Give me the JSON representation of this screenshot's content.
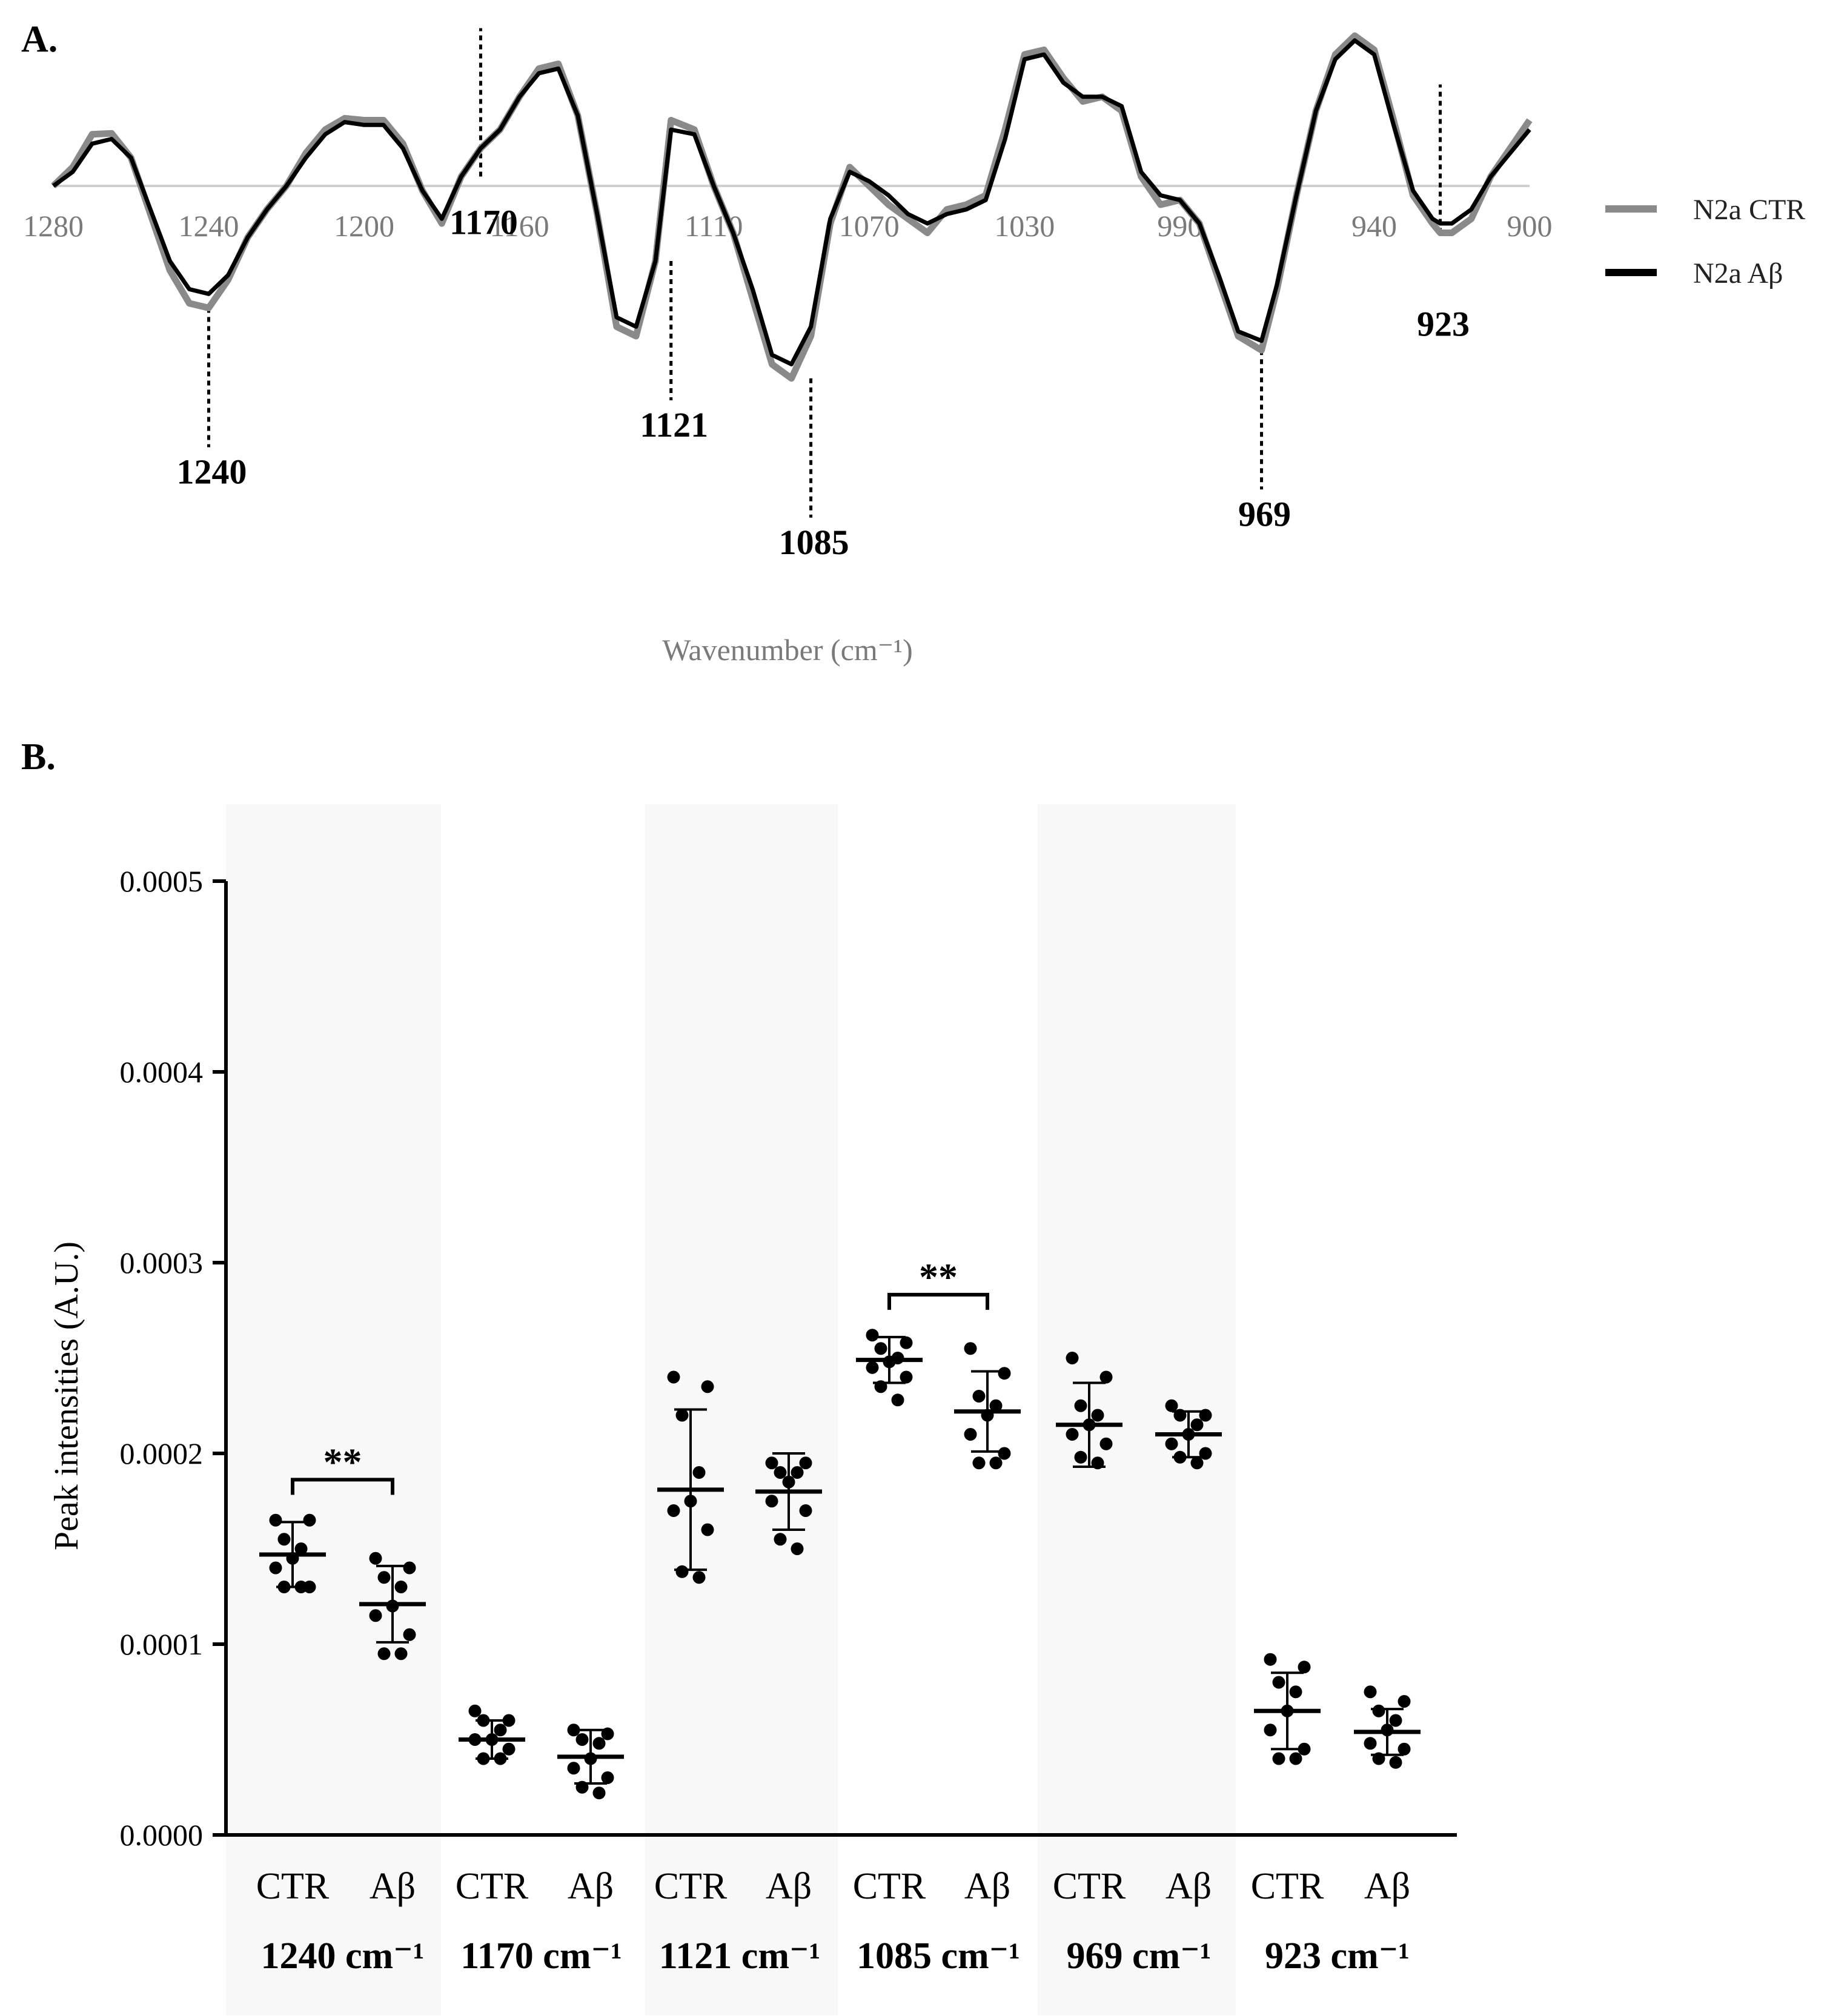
{
  "panel_a": {
    "label": "A.",
    "xlabel": "Wavenumber (cm⁻¹)",
    "legend": [
      {
        "name": "N2a CTR",
        "color": "#8a8a8a"
      },
      {
        "name": "N2a Aβ",
        "color": "#000000"
      }
    ],
    "x_ticks": [
      "1280",
      "1240",
      "1200",
      "1160",
      "1110",
      "1070",
      "1030",
      "990",
      "940",
      "900"
    ],
    "peaks": [
      "1240",
      "1170",
      "1121",
      "1085",
      "969",
      "923"
    ]
  },
  "panel_b": {
    "label": "B.",
    "ylabel": "Peak intensities (A.U.)",
    "y_ticks": [
      "0.0000",
      "0.0001",
      "0.0002",
      "0.0003",
      "0.0004",
      "0.0005"
    ],
    "significance": "**"
  },
  "chart_data": [
    {
      "type": "line",
      "xlabel": "Wavenumber (cm⁻¹)",
      "xlim": [
        1280,
        900
      ],
      "x_reversed": true,
      "y_axis_shown": false,
      "legend_position": "right",
      "x": [
        1280,
        1275,
        1270,
        1265,
        1260,
        1255,
        1250,
        1245,
        1240,
        1235,
        1230,
        1225,
        1220,
        1215,
        1210,
        1205,
        1200,
        1195,
        1190,
        1185,
        1180,
        1175,
        1170,
        1165,
        1160,
        1155,
        1150,
        1145,
        1140,
        1135,
        1130,
        1125,
        1121,
        1115,
        1110,
        1105,
        1100,
        1095,
        1090,
        1085,
        1080,
        1075,
        1070,
        1065,
        1060,
        1055,
        1050,
        1045,
        1040,
        1035,
        1030,
        1025,
        1020,
        1015,
        1010,
        1005,
        1000,
        995,
        990,
        985,
        980,
        975,
        969,
        965,
        960,
        955,
        950,
        945,
        940,
        935,
        930,
        925,
        923,
        920,
        915,
        910,
        905,
        900
      ],
      "series": [
        {
          "name": "N2a CTR",
          "color": "#8a8a8a",
          "values": [
            0.0,
            0.2,
            0.55,
            0.56,
            0.3,
            -0.3,
            -0.9,
            -1.25,
            -1.3,
            -1.0,
            -0.55,
            -0.25,
            0.0,
            0.35,
            0.6,
            0.72,
            0.7,
            0.7,
            0.45,
            -0.05,
            -0.4,
            0.1,
            0.4,
            0.6,
            0.95,
            1.25,
            1.3,
            0.75,
            -0.3,
            -1.5,
            -1.6,
            -0.8,
            0.7,
            0.6,
            0.0,
            -0.5,
            -1.2,
            -1.9,
            -2.05,
            -1.6,
            -0.4,
            0.2,
            0.0,
            -0.2,
            -0.35,
            -0.5,
            -0.25,
            -0.2,
            -0.1,
            0.6,
            1.4,
            1.45,
            1.15,
            0.9,
            0.95,
            0.8,
            0.1,
            -0.2,
            -0.15,
            -0.4,
            -1.0,
            -1.6,
            -1.75,
            -1.1,
            -0.1,
            0.8,
            1.4,
            1.6,
            1.45,
            0.7,
            -0.1,
            -0.4,
            -0.5,
            -0.5,
            -0.35,
            0.1,
            0.4,
            0.7
          ]
        },
        {
          "name": "N2a Aβ",
          "color": "#000000",
          "values": [
            0.0,
            0.15,
            0.45,
            0.5,
            0.3,
            -0.25,
            -0.8,
            -1.1,
            -1.15,
            -0.95,
            -0.55,
            -0.25,
            0.0,
            0.3,
            0.55,
            0.68,
            0.65,
            0.65,
            0.4,
            -0.05,
            -0.35,
            0.1,
            0.4,
            0.6,
            0.95,
            1.2,
            1.25,
            0.75,
            -0.3,
            -1.4,
            -1.5,
            -0.8,
            0.6,
            0.55,
            0.0,
            -0.5,
            -1.1,
            -1.8,
            -1.9,
            -1.5,
            -0.35,
            0.15,
            0.05,
            -0.1,
            -0.3,
            -0.4,
            -0.3,
            -0.25,
            -0.15,
            0.5,
            1.35,
            1.4,
            1.1,
            0.95,
            0.95,
            0.85,
            0.15,
            -0.1,
            -0.15,
            -0.4,
            -0.95,
            -1.55,
            -1.65,
            -1.05,
            -0.1,
            0.8,
            1.35,
            1.55,
            1.4,
            0.65,
            -0.05,
            -0.35,
            -0.4,
            -0.4,
            -0.25,
            0.1,
            0.35,
            0.6
          ]
        }
      ],
      "annotations": [
        1240,
        1170,
        1121,
        1085,
        969,
        923
      ]
    },
    {
      "type": "scatter",
      "ylabel": "Peak intensities (A.U.)",
      "ylim": [
        0,
        0.0005
      ],
      "ytick_step": 0.0001,
      "groups": [
        {
          "peak": "1240 cm⁻¹",
          "shaded": true,
          "significance": "**",
          "conditions": [
            {
              "name": "CTR",
              "mean": 0.000147,
              "sd": 1.7e-05,
              "points": [
                0.000165,
                0.000165,
                0.000155,
                0.00015,
                0.000145,
                0.00014,
                0.00013,
                0.00013,
                0.00013
              ]
            },
            {
              "name": "Aβ",
              "mean": 0.000121,
              "sd": 2e-05,
              "points": [
                0.000145,
                0.00014,
                0.000135,
                0.00013,
                0.00012,
                0.000115,
                0.000105,
                9.5e-05,
                9.5e-05
              ]
            }
          ]
        },
        {
          "peak": "1170 cm⁻¹",
          "shaded": false,
          "significance": "",
          "conditions": [
            {
              "name": "CTR",
              "mean": 5e-05,
              "sd": 1e-05,
              "points": [
                6.5e-05,
                6e-05,
                6e-05,
                5.5e-05,
                5e-05,
                5e-05,
                4.5e-05,
                4e-05,
                4e-05
              ]
            },
            {
              "name": "Aβ",
              "mean": 4.1e-05,
              "sd": 1.4e-05,
              "points": [
                5.5e-05,
                5.3e-05,
                5e-05,
                4.8e-05,
                4e-05,
                3.5e-05,
                3e-05,
                2.5e-05,
                2.2e-05
              ]
            }
          ]
        },
        {
          "peak": "1121 cm⁻¹",
          "shaded": true,
          "significance": "",
          "conditions": [
            {
              "name": "CTR",
              "mean": 0.000181,
              "sd": 4.2e-05,
              "points": [
                0.00024,
                0.000235,
                0.00022,
                0.00019,
                0.000175,
                0.00017,
                0.00016,
                0.000138,
                0.000135
              ]
            },
            {
              "name": "Aβ",
              "mean": 0.00018,
              "sd": 2e-05,
              "points": [
                0.000195,
                0.000195,
                0.00019,
                0.00019,
                0.000185,
                0.000175,
                0.00017,
                0.000155,
                0.00015
              ]
            }
          ]
        },
        {
          "peak": "1085 cm⁻¹",
          "shaded": false,
          "significance": "**",
          "conditions": [
            {
              "name": "CTR",
              "mean": 0.000249,
              "sd": 1.2e-05,
              "points": [
                0.000262,
                0.000258,
                0.000255,
                0.00025,
                0.000248,
                0.000245,
                0.00024,
                0.000235,
                0.000228
              ]
            },
            {
              "name": "Aβ",
              "mean": 0.000222,
              "sd": 2.1e-05,
              "points": [
                0.000255,
                0.000242,
                0.00023,
                0.000225,
                0.00022,
                0.00021,
                0.0002,
                0.000195,
                0.000195
              ]
            }
          ]
        },
        {
          "peak": "969 cm⁻¹",
          "shaded": true,
          "significance": "",
          "conditions": [
            {
              "name": "CTR",
              "mean": 0.000215,
              "sd": 2.2e-05,
              "points": [
                0.00025,
                0.00024,
                0.000225,
                0.00022,
                0.000215,
                0.00021,
                0.000205,
                0.000198,
                0.000195
              ]
            },
            {
              "name": "Aβ",
              "mean": 0.00021,
              "sd": 1.2e-05,
              "points": [
                0.000225,
                0.00022,
                0.00022,
                0.000215,
                0.00021,
                0.000205,
                0.0002,
                0.000198,
                0.000195
              ]
            }
          ]
        },
        {
          "peak": "923 cm⁻¹",
          "shaded": false,
          "significance": "",
          "conditions": [
            {
              "name": "CTR",
              "mean": 6.5e-05,
              "sd": 2e-05,
              "points": [
                9.2e-05,
                8.8e-05,
                8e-05,
                7.5e-05,
                6.5e-05,
                5.5e-05,
                4.5e-05,
                4e-05,
                4e-05
              ]
            },
            {
              "name": "Aβ",
              "mean": 5.4e-05,
              "sd": 1.2e-05,
              "points": [
                7.5e-05,
                7e-05,
                6.5e-05,
                6e-05,
                5.5e-05,
                4.8e-05,
                4.5e-05,
                4e-05,
                3.8e-05
              ]
            }
          ]
        }
      ]
    }
  ]
}
